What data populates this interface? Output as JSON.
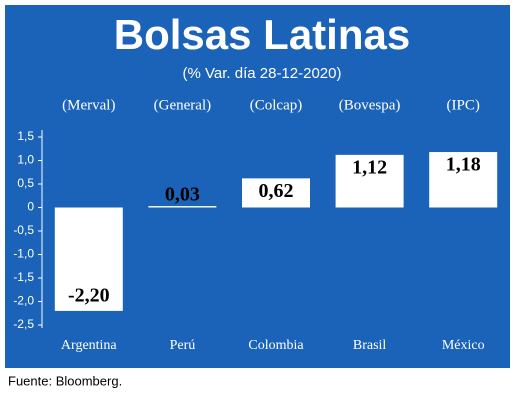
{
  "chart_data": {
    "type": "bar",
    "title": "Bolsas Latinas",
    "subtitle": "(% Var. día 28-12-2020)",
    "indices": [
      "(Merval)",
      "(General)",
      "(Colcap)",
      "(Bovespa)",
      "(IPC)"
    ],
    "categories": [
      "Argentina",
      "Perú",
      "Colombia",
      "Brasil",
      "México"
    ],
    "values": [
      -2.2,
      0.03,
      0.62,
      1.12,
      1.18
    ],
    "value_labels": [
      "-2,20",
      "0,03",
      "0,62",
      "1,12",
      "1,18"
    ],
    "color": "#ffffff",
    "ylim": [
      -2.5,
      1.5
    ],
    "yticks": [
      {
        "value": 1.5,
        "label": "1,5"
      },
      {
        "value": 1.0,
        "label": "1,0"
      },
      {
        "value": 0.5,
        "label": "0,5"
      },
      0,
      {
        "value": -0.5,
        "label": "-0,5"
      },
      {
        "value": -1.0,
        "label": "-1,0"
      },
      {
        "value": -1.5,
        "label": "-1,5"
      },
      {
        "value": -2.0,
        "label": "-2,0"
      },
      {
        "value": -2.5,
        "label": "-2,5"
      }
    ],
    "source": "Fuente: Bloomberg."
  }
}
